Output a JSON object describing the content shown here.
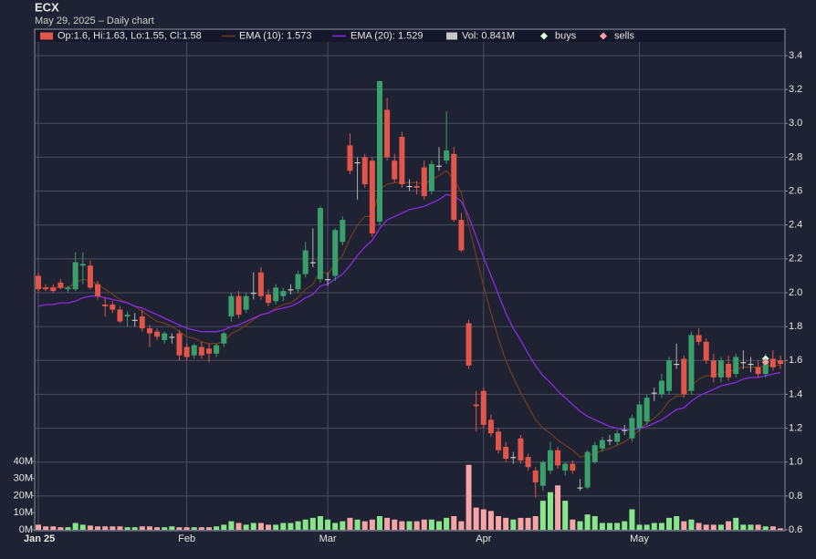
{
  "chart_data": {
    "type": "candlestick",
    "title": "ECX",
    "subtitle": "May 29, 2025 – Daily chart",
    "categories": [
      "Jan 25",
      null,
      null,
      null,
      null,
      null,
      null,
      null,
      null,
      null,
      null,
      null,
      null,
      null,
      null,
      null,
      null,
      null,
      null,
      null,
      "Feb",
      null,
      null,
      null,
      null,
      null,
      null,
      null,
      null,
      null,
      null,
      null,
      null,
      null,
      null,
      null,
      null,
      null,
      null,
      "Mar",
      null,
      null,
      null,
      null,
      null,
      null,
      null,
      null,
      null,
      null,
      null,
      null,
      null,
      null,
      null,
      null,
      null,
      null,
      null,
      null,
      "Apr",
      null,
      null,
      null,
      null,
      null,
      null,
      null,
      null,
      null,
      null,
      null,
      null,
      null,
      null,
      null,
      null,
      null,
      null,
      null,
      null,
      "May",
      null,
      null,
      null,
      null,
      null,
      null,
      null,
      null,
      null,
      null,
      null,
      null,
      null,
      null,
      null,
      null,
      null,
      null,
      null
    ],
    "candles": {
      "name": "Op:1.6, Hi:1.63, Lo:1.55, Cl:1.58",
      "up_color": "#3a9f6b",
      "down_color": "#e0564b",
      "flat_color": "#c8c8c8",
      "open": [
        2.1,
        2.03,
        2.03,
        2.06,
        2.02,
        2.02,
        2.16,
        2.16,
        2.05,
        1.93,
        1.93,
        1.9,
        1.86,
        1.84,
        1.86,
        1.79,
        1.77,
        1.72,
        1.74,
        1.76,
        1.68,
        1.63,
        1.68,
        1.67,
        1.64,
        1.7,
        1.86,
        1.98,
        1.9,
        2.0,
        2.12,
        1.99,
        1.95,
        1.98,
        2.02,
        2.02,
        2.11,
        2.18,
        2.08,
        2.08,
        2.1,
        2.3,
        2.87,
        2.77,
        2.8,
        2.78,
        2.42,
        3.08,
        2.78,
        2.92,
        2.63,
        2.63,
        2.74,
        2.6,
        2.75,
        2.78,
        2.82,
        2.43,
        1.82,
        1.34,
        1.42,
        1.25,
        1.18,
        1.09,
        1.03,
        1.14,
        1.03,
        0.95,
        0.86,
        0.95,
        1.07,
        0.95,
        0.99,
        0.85,
        0.85,
        1.0,
        1.08,
        1.13,
        1.12,
        1.19,
        1.14,
        1.2,
        1.24,
        1.41,
        1.4,
        1.42,
        1.58,
        1.61,
        1.42,
        1.75,
        1.71,
        1.6,
        1.5,
        1.58,
        1.52,
        1.59,
        1.58,
        1.56,
        1.52,
        1.61,
        1.6
      ],
      "high": [
        2.12,
        2.05,
        2.05,
        2.08,
        2.04,
        2.24,
        2.24,
        2.19,
        2.07,
        1.97,
        1.95,
        1.92,
        1.89,
        1.88,
        1.9,
        1.81,
        1.79,
        1.77,
        1.76,
        1.78,
        1.7,
        1.7,
        1.71,
        1.7,
        1.7,
        1.77,
        2.0,
        2.01,
        2.0,
        2.12,
        2.15,
        2.02,
        2.05,
        2.03,
        2.05,
        2.13,
        2.3,
        2.38,
        2.51,
        2.12,
        2.38,
        2.45,
        2.94,
        2.8,
        2.82,
        2.8,
        3.25,
        3.15,
        2.82,
        2.95,
        2.67,
        2.66,
        2.78,
        2.78,
        2.86,
        3.07,
        2.86,
        2.47,
        1.84,
        1.42,
        1.44,
        1.28,
        1.2,
        1.12,
        1.06,
        1.16,
        1.05,
        0.97,
        1.01,
        1.12,
        1.09,
        1.0,
        1.01,
        0.9,
        1.07,
        1.12,
        1.15,
        1.16,
        1.19,
        1.22,
        1.28,
        1.36,
        1.4,
        1.44,
        1.52,
        1.62,
        1.7,
        1.63,
        1.77,
        1.79,
        1.73,
        1.64,
        1.62,
        1.63,
        1.64,
        1.66,
        1.62,
        1.6,
        1.64,
        1.66,
        1.63
      ],
      "low": [
        2.0,
        2.01,
        2.0,
        2.02,
        2.0,
        2.01,
        2.05,
        2.02,
        1.96,
        1.86,
        1.88,
        1.82,
        1.8,
        1.8,
        1.77,
        1.68,
        1.72,
        1.7,
        1.7,
        1.6,
        1.6,
        1.61,
        1.61,
        1.59,
        1.62,
        1.68,
        1.83,
        1.85,
        1.88,
        1.96,
        1.96,
        1.92,
        1.93,
        1.95,
        1.99,
        2.0,
        2.09,
        2.15,
        2.06,
        2.04,
        2.07,
        2.28,
        2.7,
        2.55,
        2.62,
        2.33,
        2.4,
        2.78,
        2.65,
        2.62,
        2.6,
        2.58,
        2.55,
        2.58,
        2.72,
        2.76,
        2.42,
        2.24,
        1.55,
        1.18,
        1.2,
        1.15,
        1.05,
        1.0,
        0.99,
        0.99,
        0.95,
        0.79,
        0.83,
        0.93,
        0.96,
        0.92,
        0.93,
        0.83,
        0.84,
        0.99,
        1.06,
        1.1,
        1.1,
        1.16,
        1.12,
        1.18,
        1.22,
        1.36,
        1.38,
        1.4,
        1.55,
        1.38,
        1.4,
        1.69,
        1.58,
        1.47,
        1.47,
        1.48,
        1.5,
        1.55,
        1.53,
        1.5,
        1.5,
        1.54,
        1.55
      ],
      "close": [
        2.02,
        2.02,
        2.01,
        2.03,
        2.03,
        2.18,
        2.17,
        2.03,
        1.98,
        1.92,
        1.9,
        1.83,
        1.87,
        1.84,
        1.79,
        1.76,
        1.74,
        1.76,
        1.74,
        1.63,
        1.62,
        1.69,
        1.63,
        1.64,
        1.69,
        1.76,
        1.98,
        1.87,
        1.98,
        2.0,
        1.98,
        1.94,
        2.03,
        2.01,
        2.02,
        2.11,
        2.25,
        2.18,
        2.5,
        2.08,
        2.37,
        2.43,
        2.72,
        2.77,
        2.64,
        2.35,
        3.25,
        2.8,
        2.67,
        2.64,
        2.63,
        2.62,
        2.57,
        2.76,
        2.75,
        2.84,
        2.43,
        2.25,
        1.57,
        1.33,
        1.22,
        1.17,
        1.07,
        1.02,
        1.03,
        1.01,
        0.97,
        0.88,
        1.0,
        1.07,
        0.98,
        0.99,
        0.95,
        0.85,
        1.06,
        1.1,
        1.13,
        1.13,
        1.17,
        1.19,
        1.26,
        1.34,
        1.38,
        1.41,
        1.48,
        1.6,
        1.58,
        1.4,
        1.75,
        1.71,
        1.6,
        1.5,
        1.6,
        1.5,
        1.62,
        1.59,
        1.58,
        1.52,
        1.59,
        1.56,
        1.58
      ]
    },
    "series": [
      {
        "name": "EMA (10): 1.573",
        "color": "#6e3b1e",
        "values": [
          2.03,
          2.03,
          2.03,
          2.03,
          2.03,
          2.06,
          2.08,
          2.07,
          2.05,
          2.02,
          1.99,
          1.96,
          1.94,
          1.92,
          1.89,
          1.86,
          1.83,
          1.82,
          1.8,
          1.77,
          1.74,
          1.73,
          1.71,
          1.7,
          1.7,
          1.71,
          1.76,
          1.78,
          1.81,
          1.84,
          1.87,
          1.88,
          1.91,
          1.93,
          1.94,
          1.97,
          2.02,
          2.05,
          2.13,
          2.11,
          2.17,
          2.22,
          2.32,
          2.4,
          2.45,
          2.45,
          2.61,
          2.64,
          2.65,
          2.65,
          2.65,
          2.65,
          2.64,
          2.67,
          2.69,
          2.72,
          2.67,
          2.59,
          2.4,
          2.22,
          2.04,
          1.88,
          1.73,
          1.6,
          1.5,
          1.41,
          1.33,
          1.25,
          1.2,
          1.17,
          1.13,
          1.1,
          1.07,
          1.03,
          1.04,
          1.05,
          1.07,
          1.08,
          1.1,
          1.12,
          1.15,
          1.19,
          1.23,
          1.26,
          1.3,
          1.36,
          1.39,
          1.39,
          1.45,
          1.49,
          1.51,
          1.51,
          1.53,
          1.53,
          1.55,
          1.56,
          1.56,
          1.56,
          1.57,
          1.57,
          1.573
        ]
      },
      {
        "name": "EMA (20): 1.529",
        "color": "#8b2be0",
        "values": [
          1.92,
          1.93,
          1.93,
          1.94,
          1.94,
          1.95,
          1.97,
          1.98,
          1.98,
          1.97,
          1.96,
          1.95,
          1.94,
          1.92,
          1.91,
          1.89,
          1.87,
          1.85,
          1.83,
          1.81,
          1.79,
          1.78,
          1.77,
          1.77,
          1.77,
          1.78,
          1.8,
          1.81,
          1.83,
          1.85,
          1.87,
          1.88,
          1.9,
          1.91,
          1.92,
          1.94,
          1.97,
          1.99,
          2.04,
          2.05,
          2.08,
          2.11,
          2.16,
          2.22,
          2.27,
          2.31,
          2.38,
          2.43,
          2.45,
          2.47,
          2.49,
          2.5,
          2.51,
          2.53,
          2.55,
          2.58,
          2.57,
          2.54,
          2.45,
          2.33,
          2.21,
          2.1,
          1.99,
          1.88,
          1.79,
          1.72,
          1.64,
          1.57,
          1.51,
          1.47,
          1.42,
          1.38,
          1.34,
          1.3,
          1.27,
          1.25,
          1.23,
          1.21,
          1.2,
          1.19,
          1.19,
          1.2,
          1.21,
          1.23,
          1.25,
          1.28,
          1.31,
          1.32,
          1.36,
          1.39,
          1.41,
          1.43,
          1.45,
          1.46,
          1.47,
          1.49,
          1.5,
          1.5,
          1.51,
          1.52,
          1.529
        ]
      }
    ],
    "volume": {
      "name": "Vol: 0.841M",
      "axis": "y2",
      "color": "#c8c8c8",
      "up_color": "#88e68a",
      "down_color": "#f5a5a5",
      "values": [
        3,
        2,
        2,
        1.5,
        1.5,
        4,
        3,
        2.5,
        2,
        2,
        2,
        2,
        1.5,
        1.5,
        2,
        2,
        1.5,
        1.5,
        2,
        1.5,
        1.5,
        1.5,
        1.5,
        1.5,
        2,
        3,
        5,
        4,
        3,
        4,
        4,
        3,
        3,
        4,
        4,
        5,
        6,
        7,
        8,
        6,
        4,
        5,
        7,
        6,
        5,
        6,
        8,
        7,
        6,
        5,
        5,
        5,
        6,
        6,
        5,
        7,
        8,
        5,
        38,
        13,
        12,
        11,
        8,
        7,
        6,
        7,
        7,
        8,
        17,
        22,
        26,
        17,
        6,
        5,
        9,
        8,
        4,
        4,
        4,
        5,
        12,
        3,
        3,
        4,
        4,
        7,
        8,
        5,
        6,
        4,
        3,
        3,
        3,
        5,
        7,
        3,
        3,
        3,
        2,
        2,
        0.841
      ]
    },
    "buys": {
      "name": "buys",
      "color": "#dcffd0",
      "at": [
        98
      ],
      "values": [
        1.61
      ]
    },
    "sells": {
      "name": "sells",
      "color": "#ff9e9e",
      "at": [
        98
      ],
      "values": [
        1.59
      ]
    },
    "ylim": [
      0.6,
      3.556
    ],
    "yticks": [
      0.6,
      0.8,
      {
        "value": 1,
        "label": "1.0"
      },
      1.2,
      1.4,
      1.6,
      1.8,
      {
        "value": 2,
        "label": "2.0"
      },
      2.2,
      2.4,
      2.6,
      2.8,
      {
        "value": 3,
        "label": "3.0"
      },
      3.2,
      3.4
    ],
    "y2lim": [
      0,
      292.8
    ],
    "y2ticks": [
      {
        "value": 0,
        "label": "0M"
      },
      {
        "value": 10,
        "label": "10M"
      },
      {
        "value": 20,
        "label": "20M"
      },
      {
        "value": 30,
        "label": "30M"
      },
      {
        "value": 40,
        "label": "40M"
      }
    ],
    "grid": true
  }
}
